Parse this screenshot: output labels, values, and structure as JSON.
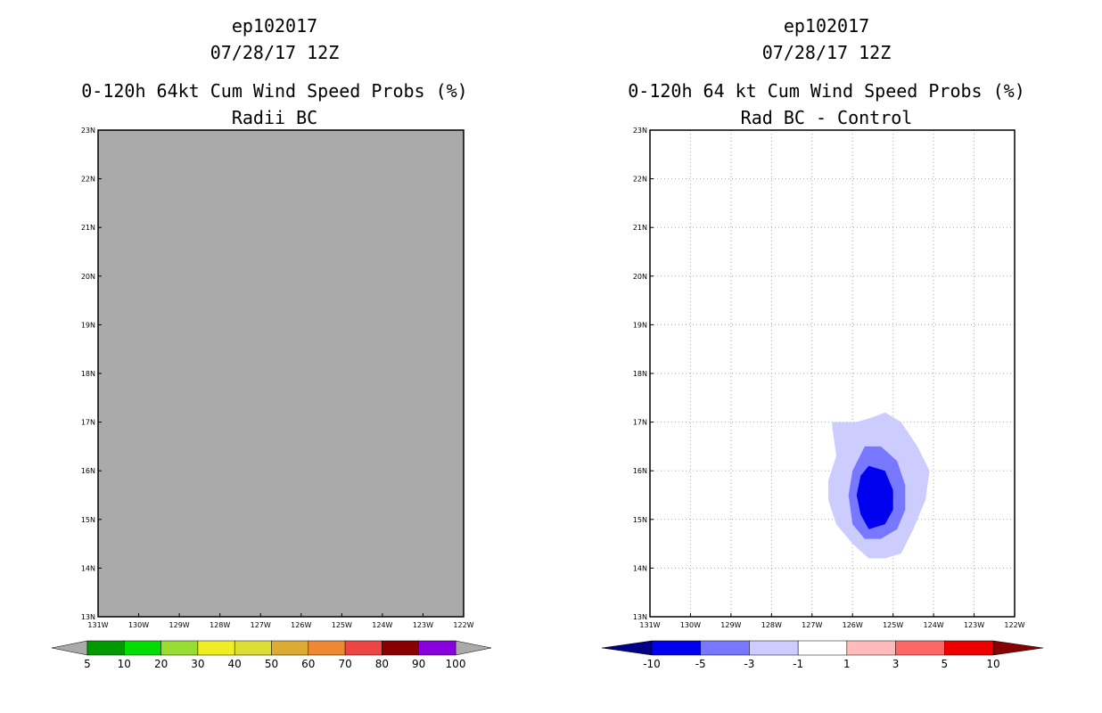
{
  "chart_data": [
    {
      "type": "heatmap",
      "title_lines": [
        "ep102017",
        "07/28/17 12Z",
        "0-120h 64kt Cum Wind Speed Probs (%)",
        "Radii BC"
      ],
      "x_ticks": [
        "131W",
        "130W",
        "129W",
        "128W",
        "127W",
        "126W",
        "125W",
        "124W",
        "123W",
        "122W"
      ],
      "y_ticks": [
        "13N",
        "14N",
        "15N",
        "16N",
        "17N",
        "18N",
        "19N",
        "20N",
        "21N",
        "22N",
        "23N"
      ],
      "xlim": [
        -131,
        -122
      ],
      "ylim": [
        13,
        23
      ],
      "grid": false,
      "field": "no data (uniform gray)",
      "background_color": "#aaaaaa",
      "colorbar": {
        "labels": [
          "5",
          "10",
          "20",
          "30",
          "40",
          "50",
          "60",
          "70",
          "80",
          "90",
          "100"
        ],
        "colors": [
          "#009900",
          "#00dd00",
          "#99dd33",
          "#eeee22",
          "#dddd33",
          "#ddaa33",
          "#ee8833",
          "#ee4444",
          "#880000",
          "#8800dd"
        ],
        "under_color": "#aaaaaa",
        "over_color": "#aaaaaa"
      }
    },
    {
      "type": "heatmap",
      "title_lines": [
        "ep102017",
        "07/28/17 12Z",
        "0-120h 64 kt Cum Wind Speed Probs (%)",
        "Rad BC - Control"
      ],
      "x_ticks": [
        "131W",
        "130W",
        "129W",
        "128W",
        "127W",
        "126W",
        "125W",
        "124W",
        "123W",
        "122W"
      ],
      "y_ticks": [
        "13N",
        "14N",
        "15N",
        "16N",
        "17N",
        "18N",
        "19N",
        "20N",
        "21N",
        "22N",
        "23N"
      ],
      "xlim": [
        -131,
        -122
      ],
      "ylim": [
        13,
        23
      ],
      "grid": true,
      "contours": [
        {
          "level": "-1 to -3",
          "color": "#ccccff",
          "points": [
            [
              -126.5,
              17.0
            ],
            [
              -125.9,
              17.0
            ],
            [
              -125.5,
              17.1
            ],
            [
              -125.2,
              17.2
            ],
            [
              -124.8,
              17.0
            ],
            [
              -124.4,
              16.5
            ],
            [
              -124.1,
              16.0
            ],
            [
              -124.2,
              15.4
            ],
            [
              -124.5,
              14.8
            ],
            [
              -124.8,
              14.3
            ],
            [
              -125.2,
              14.2
            ],
            [
              -125.6,
              14.2
            ],
            [
              -126.0,
              14.5
            ],
            [
              -126.4,
              14.9
            ],
            [
              -126.6,
              15.4
            ],
            [
              -126.6,
              15.8
            ],
            [
              -126.4,
              16.3
            ],
            [
              -126.5,
              16.9
            ]
          ]
        },
        {
          "level": "-3 to -5",
          "color": "#7777ff",
          "points": [
            [
              -125.7,
              16.5
            ],
            [
              -125.3,
              16.5
            ],
            [
              -124.9,
              16.2
            ],
            [
              -124.7,
              15.7
            ],
            [
              -124.7,
              15.2
            ],
            [
              -124.9,
              14.8
            ],
            [
              -125.3,
              14.6
            ],
            [
              -125.7,
              14.6
            ],
            [
              -126.0,
              14.9
            ],
            [
              -126.1,
              15.5
            ],
            [
              -126.0,
              16.0
            ]
          ]
        },
        {
          "level": "< -5",
          "color": "#0000ee",
          "points": [
            [
              -125.6,
              16.1
            ],
            [
              -125.2,
              16.0
            ],
            [
              -125.0,
              15.6
            ],
            [
              -125.0,
              15.2
            ],
            [
              -125.2,
              14.9
            ],
            [
              -125.6,
              14.8
            ],
            [
              -125.8,
              15.1
            ],
            [
              -125.9,
              15.5
            ],
            [
              -125.8,
              15.9
            ]
          ]
        }
      ],
      "colorbar": {
        "labels": [
          "-10",
          "-5",
          "-3",
          "-1",
          "1",
          "3",
          "5",
          "10"
        ],
        "colors": [
          "#0000ee",
          "#7777ff",
          "#ccccff",
          "#ffffff",
          "#ffbbbb",
          "#ff6666",
          "#ee0000"
        ],
        "under_color": "#000088",
        "over_color": "#880000"
      }
    }
  ]
}
